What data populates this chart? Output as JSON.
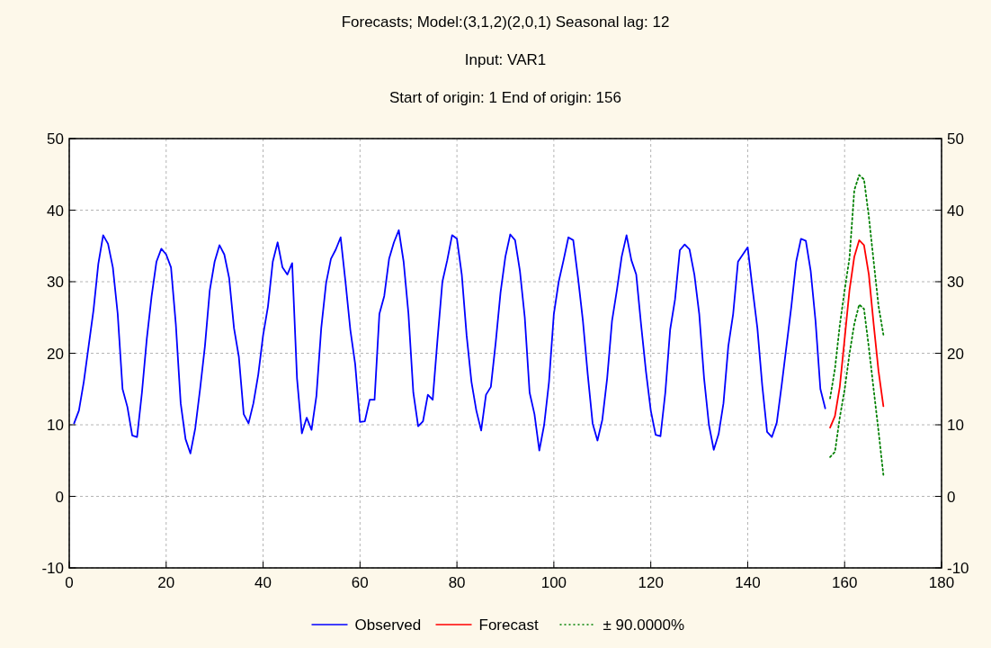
{
  "chart_data": {
    "type": "line",
    "title": "Forecasts; Model:(3,1,2)(2,0,1) Seasonal lag: 12",
    "subtitle": "Input: VAR1\nStart of origin: 1 End of origin: 156",
    "xlim": [
      0,
      180
    ],
    "xticks": [
      0,
      20,
      40,
      60,
      80,
      100,
      120,
      140,
      160,
      180
    ],
    "ylim": [
      -10,
      50
    ],
    "yticks": [
      -10,
      0,
      10,
      20,
      30,
      40,
      50
    ],
    "y2lim": [
      -10,
      50
    ],
    "y2ticks": [
      -10,
      0,
      10,
      20,
      30,
      40,
      50
    ],
    "grid": true,
    "legend": "bottom",
    "marker": "none",
    "series": [
      {
        "name": "Observed",
        "color": "#0000ff",
        "line_style": "solid",
        "x": [
          1,
          2,
          3,
          4,
          5,
          6,
          7,
          8,
          9,
          10,
          11,
          12,
          13,
          14,
          15,
          16,
          17,
          18,
          19,
          20,
          21,
          22,
          23,
          24,
          25,
          26,
          27,
          28,
          29,
          30,
          31,
          32,
          33,
          34,
          35,
          36,
          37,
          38,
          39,
          40,
          41,
          42,
          43,
          44,
          45,
          46,
          47,
          48,
          49,
          50,
          51,
          52,
          53,
          54,
          55,
          56,
          57,
          58,
          59,
          60,
          61,
          62,
          63,
          64,
          65,
          66,
          67,
          68,
          69,
          70,
          71,
          72,
          73,
          74,
          75,
          76,
          77,
          78,
          79,
          80,
          81,
          82,
          83,
          84,
          85,
          86,
          87,
          88,
          89,
          90,
          91,
          92,
          93,
          94,
          95,
          96,
          97,
          98,
          99,
          100,
          101,
          102,
          103,
          104,
          105,
          106,
          107,
          108,
          109,
          110,
          111,
          112,
          113,
          114,
          115,
          116,
          117,
          118,
          119,
          120,
          121,
          122,
          123,
          124,
          125,
          126,
          127,
          128,
          129,
          130,
          131,
          132,
          133,
          134,
          135,
          136,
          137,
          138,
          139,
          140,
          141,
          142,
          143,
          144,
          145,
          146,
          147,
          148,
          149,
          150,
          151,
          152,
          153,
          154,
          155,
          156
        ],
        "values": [
          10.2,
          12,
          16,
          21,
          26,
          32.5,
          36.5,
          35.3,
          32,
          25.5,
          15,
          12.5,
          8.5,
          8.3,
          14.5,
          22,
          28,
          32.8,
          34.6,
          33.8,
          32,
          24,
          13,
          8,
          6,
          9.5,
          15,
          21,
          28.8,
          32.8,
          35.1,
          33.8,
          30.5,
          23.5,
          19.5,
          11.5,
          10.2,
          13,
          17,
          22.5,
          26.5,
          32.8,
          35.5,
          32,
          31,
          32.6,
          16.5,
          8.8,
          11,
          9.3,
          14,
          23.5,
          29.8,
          33.2,
          34.5,
          36.2,
          30,
          23.3,
          18.5,
          10.4,
          10.5,
          13.5,
          13.5,
          25.5,
          28,
          33.2,
          35.5,
          37.2,
          32.8,
          25.5,
          14.5,
          9.8,
          10.5,
          14.2,
          13.5,
          22,
          30,
          33,
          36.5,
          36,
          31,
          22.5,
          16,
          12,
          9.2,
          14.2,
          15.3,
          21.5,
          28.5,
          33.5,
          36.6,
          35.8,
          31.5,
          25,
          14.5,
          11.5,
          6.4,
          10,
          16,
          25.5,
          30,
          33,
          36.2,
          35.8,
          30.5,
          24.5,
          17,
          10.2,
          7.8,
          10.7,
          16.5,
          24.5,
          28.8,
          33.5,
          36.5,
          33,
          31,
          24,
          17.5,
          12,
          8.6,
          8.4,
          14.5,
          23.3,
          27.5,
          34.4,
          35.2,
          34.5,
          31,
          25.5,
          16.5,
          10,
          6.5,
          8.7,
          13,
          21,
          25.5,
          32.8,
          33.8,
          34.8,
          29,
          23.5,
          15.5,
          9,
          8.3,
          10.3,
          15.5,
          21,
          26.5,
          32.8,
          36,
          35.7,
          31.5,
          24.5,
          15,
          12.3
        ]
      },
      {
        "name": "Forecast",
        "color": "#ff0000",
        "line_style": "solid",
        "x": [
          157,
          158,
          159,
          160,
          161,
          162,
          163,
          164,
          165,
          166,
          167,
          168
        ],
        "values": [
          9.6,
          11.2,
          15.3,
          22,
          28.8,
          33.5,
          35.8,
          35.1,
          31,
          24,
          17.5,
          12.6
        ]
      },
      {
        "name": "± 90.0000%",
        "color": "#008000",
        "line_style": "dotted",
        "x": [
          157,
          158,
          159,
          160,
          161,
          162,
          163,
          164,
          165,
          166,
          167,
          168
        ],
        "values": [
          13.7,
          17.8,
          23.9,
          28.8,
          33.3,
          42.8,
          44.9,
          44.3,
          39.1,
          32.8,
          26.6,
          22.6
        ]
      },
      {
        "color": "#008000",
        "line_style": "dotted",
        "x": [
          157,
          158,
          159,
          160,
          161,
          162,
          163,
          164,
          165,
          166,
          167,
          168
        ],
        "values": [
          5.5,
          6.2,
          11,
          14.9,
          19.9,
          24.1,
          26.8,
          26.2,
          20.8,
          14.9,
          9.1,
          3
        ]
      }
    ]
  }
}
